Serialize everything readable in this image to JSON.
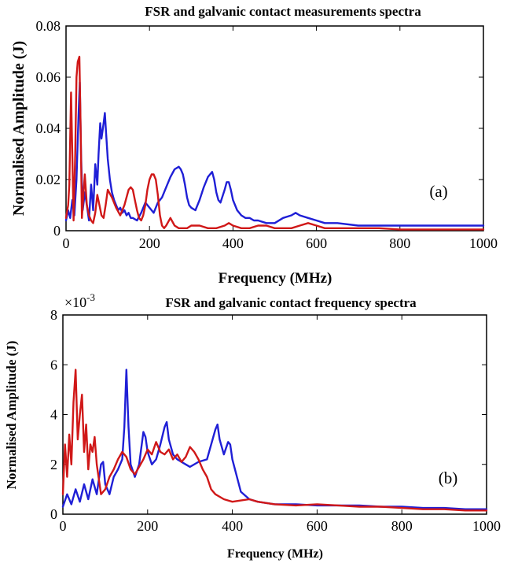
{
  "chart_data": [
    {
      "type": "line",
      "title": "FSR and galvanic contact measurements spectra",
      "xlabel": "Frequency (MHz)",
      "ylabel": "Normalised Amplitude (J)",
      "xlim": [
        0,
        1000
      ],
      "ylim": [
        0,
        0.08
      ],
      "xticks": [
        0,
        200,
        400,
        600,
        800,
        1000
      ],
      "xtick_labels": [
        "0",
        "200",
        "400",
        "600",
        "800",
        "1000"
      ],
      "yticks": [
        0,
        0.02,
        0.04,
        0.06,
        0.08
      ],
      "ytick_labels": [
        "0",
        "0.02",
        "0.04",
        "0.06",
        "0.08"
      ],
      "annotation": "(a)",
      "grid": false,
      "series": [
        {
          "color": "#1f1fd6",
          "x": [
            0,
            5,
            10,
            15,
            20,
            25,
            30,
            33,
            36,
            40,
            45,
            50,
            55,
            60,
            65,
            70,
            75,
            78,
            82,
            85,
            90,
            93,
            96,
            100,
            105,
            110,
            115,
            120,
            125,
            130,
            135,
            140,
            145,
            150,
            155,
            160,
            170,
            180,
            190,
            200,
            210,
            220,
            230,
            240,
            250,
            260,
            270,
            275,
            280,
            285,
            290,
            295,
            300,
            310,
            320,
            330,
            340,
            345,
            350,
            355,
            360,
            365,
            370,
            380,
            385,
            390,
            395,
            400,
            410,
            420,
            430,
            440,
            450,
            460,
            480,
            500,
            520,
            540,
            550,
            560,
            580,
            600,
            620,
            650,
            700,
            750,
            800,
            850,
            900,
            950,
            1000
          ],
          "y": [
            0.004,
            0.008,
            0.005,
            0.012,
            0.006,
            0.02,
            0.045,
            0.058,
            0.03,
            0.008,
            0.015,
            0.01,
            0.004,
            0.018,
            0.008,
            0.026,
            0.018,
            0.03,
            0.042,
            0.036,
            0.042,
            0.046,
            0.038,
            0.028,
            0.02,
            0.015,
            0.012,
            0.01,
            0.008,
            0.009,
            0.007,
            0.008,
            0.006,
            0.007,
            0.005,
            0.005,
            0.004,
            0.007,
            0.011,
            0.009,
            0.007,
            0.011,
            0.013,
            0.017,
            0.021,
            0.024,
            0.025,
            0.024,
            0.022,
            0.018,
            0.013,
            0.01,
            0.009,
            0.008,
            0.012,
            0.017,
            0.021,
            0.022,
            0.023,
            0.02,
            0.015,
            0.012,
            0.011,
            0.016,
            0.019,
            0.019,
            0.016,
            0.012,
            0.008,
            0.006,
            0.005,
            0.005,
            0.004,
            0.004,
            0.003,
            0.003,
            0.005,
            0.006,
            0.007,
            0.006,
            0.005,
            0.004,
            0.003,
            0.003,
            0.002,
            0.002,
            0.002,
            0.002,
            0.002,
            0.002,
            0.002
          ]
        },
        {
          "color": "#d01818",
          "x": [
            0,
            5,
            8,
            12,
            15,
            18,
            22,
            25,
            28,
            32,
            35,
            38,
            42,
            45,
            50,
            55,
            60,
            65,
            70,
            75,
            80,
            85,
            90,
            95,
            100,
            110,
            120,
            130,
            140,
            150,
            155,
            160,
            165,
            170,
            175,
            180,
            185,
            190,
            195,
            200,
            205,
            210,
            215,
            220,
            225,
            230,
            235,
            240,
            250,
            260,
            270,
            280,
            290,
            300,
            320,
            340,
            360,
            380,
            390,
            400,
            420,
            440,
            460,
            480,
            500,
            520,
            540,
            560,
            580,
            600,
            620,
            650,
            700,
            750,
            800,
            850,
            900,
            950,
            1000
          ],
          "y": [
            0.005,
            0.01,
            0.018,
            0.054,
            0.03,
            0.004,
            0.03,
            0.06,
            0.066,
            0.068,
            0.04,
            0.005,
            0.015,
            0.022,
            0.01,
            0.006,
            0.004,
            0.003,
            0.007,
            0.014,
            0.01,
            0.006,
            0.005,
            0.01,
            0.016,
            0.013,
            0.009,
            0.006,
            0.01,
            0.016,
            0.017,
            0.016,
            0.012,
            0.008,
            0.005,
            0.004,
            0.006,
            0.01,
            0.016,
            0.02,
            0.022,
            0.022,
            0.02,
            0.014,
            0.006,
            0.002,
            0.001,
            0.002,
            0.005,
            0.002,
            0.001,
            0.001,
            0.001,
            0.002,
            0.002,
            0.001,
            0.001,
            0.002,
            0.003,
            0.002,
            0.001,
            0.001,
            0.002,
            0.002,
            0.001,
            0.001,
            0.001,
            0.002,
            0.003,
            0.002,
            0.001,
            0.001,
            0.001,
            0.001,
            0.0005,
            0.0005,
            0.0005,
            0.0005,
            0.0005
          ]
        }
      ]
    },
    {
      "type": "line",
      "title": "FSR and galvanic contact frequency spectra",
      "xlabel": "Frequency (MHz)",
      "ylabel": "Normalised Amplitude (J)",
      "exponent_label": "×10",
      "exponent_power": "-3",
      "xlim": [
        0,
        1000
      ],
      "ylim": [
        0,
        8
      ],
      "xticks": [
        0,
        200,
        400,
        600,
        800,
        1000
      ],
      "xtick_labels": [
        "0",
        "200",
        "400",
        "600",
        "800",
        "1000"
      ],
      "yticks": [
        0,
        2,
        4,
        6,
        8
      ],
      "ytick_labels": [
        "0",
        "2",
        "4",
        "6",
        "8"
      ],
      "annotation": "(b)",
      "grid": false,
      "series": [
        {
          "color": "#1f1fd6",
          "x": [
            0,
            10,
            20,
            30,
            40,
            50,
            60,
            70,
            80,
            90,
            95,
            100,
            110,
            120,
            130,
            140,
            145,
            150,
            155,
            160,
            170,
            180,
            190,
            195,
            200,
            210,
            220,
            230,
            240,
            245,
            250,
            260,
            270,
            280,
            290,
            300,
            320,
            340,
            360,
            365,
            370,
            380,
            390,
            395,
            400,
            420,
            440,
            460,
            500,
            550,
            600,
            650,
            700,
            750,
            800,
            850,
            900,
            950,
            1000
          ],
          "y": [
            0.3,
            0.8,
            0.4,
            1.0,
            0.5,
            1.2,
            0.6,
            1.4,
            0.8,
            2.0,
            2.1,
            1.2,
            0.8,
            1.5,
            1.8,
            2.2,
            3.5,
            5.8,
            3.5,
            2.0,
            1.5,
            2.0,
            3.3,
            3.1,
            2.5,
            2.0,
            2.2,
            2.8,
            3.5,
            3.7,
            3.0,
            2.4,
            2.2,
            2.1,
            2.0,
            1.9,
            2.1,
            2.2,
            3.4,
            3.6,
            3.0,
            2.4,
            2.9,
            2.8,
            2.2,
            0.9,
            0.6,
            0.5,
            0.4,
            0.4,
            0.35,
            0.35,
            0.35,
            0.3,
            0.3,
            0.25,
            0.25,
            0.2,
            0.2
          ]
        },
        {
          "color": "#d01818",
          "x": [
            0,
            5,
            10,
            15,
            20,
            25,
            30,
            35,
            40,
            45,
            50,
            55,
            60,
            65,
            70,
            75,
            80,
            90,
            100,
            110,
            120,
            130,
            140,
            150,
            160,
            170,
            180,
            190,
            200,
            210,
            220,
            230,
            240,
            250,
            260,
            270,
            280,
            290,
            300,
            310,
            320,
            330,
            340,
            350,
            360,
            380,
            400,
            420,
            440,
            460,
            500,
            550,
            600,
            650,
            700,
            750,
            800,
            850,
            900,
            950,
            1000
          ],
          "y": [
            0.8,
            2.8,
            1.5,
            3.2,
            2.0,
            4.5,
            5.8,
            3.0,
            4.0,
            4.8,
            2.5,
            3.6,
            1.8,
            2.8,
            2.5,
            3.1,
            2.0,
            0.8,
            1.0,
            1.5,
            1.8,
            2.2,
            2.5,
            2.3,
            1.8,
            1.6,
            1.9,
            2.2,
            2.6,
            2.4,
            2.9,
            2.5,
            2.4,
            2.6,
            2.2,
            2.4,
            2.1,
            2.3,
            2.7,
            2.5,
            2.2,
            1.8,
            1.5,
            1.0,
            0.8,
            0.6,
            0.5,
            0.55,
            0.6,
            0.5,
            0.4,
            0.35,
            0.4,
            0.35,
            0.3,
            0.3,
            0.25,
            0.2,
            0.2,
            0.15,
            0.15
          ]
        }
      ]
    }
  ]
}
